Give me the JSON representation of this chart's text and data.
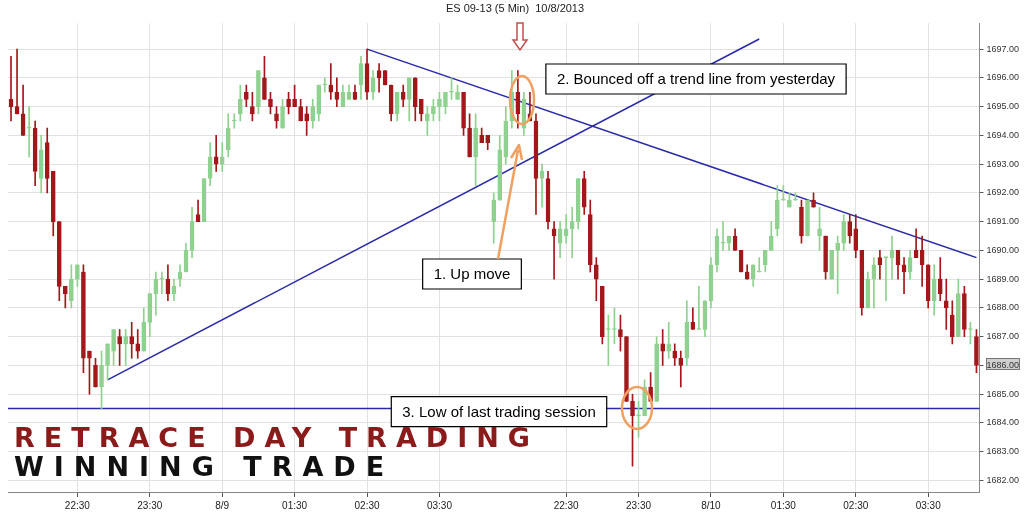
{
  "chart_data": {
    "type": "candlestick",
    "title": "ES 09-13 (5 Min)  10/8/2013",
    "categories": [
      null,
      null,
      null,
      null,
      null,
      null,
      null,
      null,
      null,
      null,
      null,
      "22:30",
      null,
      null,
      null,
      null,
      null,
      null,
      null,
      null,
      null,
      null,
      null,
      "23:30",
      null,
      null,
      null,
      null,
      null,
      null,
      null,
      null,
      null,
      null,
      null,
      "8/9",
      null,
      null,
      null,
      null,
      null,
      null,
      null,
      null,
      null,
      null,
      null,
      "01:30",
      null,
      null,
      null,
      null,
      null,
      null,
      null,
      null,
      null,
      null,
      null,
      "02:30",
      null,
      null,
      null,
      null,
      null,
      null,
      null,
      null,
      null,
      null,
      null,
      "03:30",
      null,
      null,
      null,
      null,
      null,
      null,
      null,
      null,
      null,
      null,
      null,
      null,
      null,
      null,
      null,
      null,
      null,
      null,
      null,
      null,
      "22:30",
      null,
      null,
      null,
      null,
      null,
      null,
      null,
      null,
      null,
      null,
      null,
      "23:30",
      null,
      null,
      null,
      null,
      null,
      null,
      null,
      null,
      null,
      null,
      null,
      "8/10",
      null,
      null,
      null,
      null,
      null,
      null,
      null,
      null,
      null,
      null,
      null,
      "01:30",
      null,
      null,
      null,
      null,
      null,
      null,
      null,
      null,
      null,
      null,
      null,
      "02:30",
      null,
      null,
      null,
      null,
      null,
      null,
      null,
      null,
      null,
      null,
      null,
      "03:30",
      null,
      null,
      null,
      null,
      null,
      null,
      null,
      null
    ],
    "colors": [
      "#a3171b",
      "#a3171b",
      "#a3171b",
      "#8fd18f",
      "#a3171b",
      "#8fd18f",
      "#a3171b",
      "#a3171b",
      "#a3171b",
      "#a3171b",
      "#8fd18f",
      "#8fd18f",
      "#a3171b",
      "#a3171b",
      "#a3171b",
      "#8fd18f",
      "#8fd18f",
      "#8fd18f",
      "#a3171b",
      "#8fd18f",
      "#a3171b",
      "#a3171b",
      "#8fd18f",
      "#8fd18f",
      "#8fd18f",
      "#8fd18f",
      "#a3171b",
      "#8fd18f",
      "#8fd18f",
      "#8fd18f",
      "#8fd18f",
      "#a3171b",
      "#8fd18f",
      "#8fd18f",
      "#a3171b",
      "#8fd18f",
      "#8fd18f",
      "#8fd18f",
      "#8fd18f",
      "#a3171b",
      "#a3171b",
      "#8fd18f",
      "#a3171b",
      "#a3171b",
      "#a3171b",
      "#8fd18f",
      "#a3171b",
      "#a3171b",
      "#a3171b",
      "#a3171b",
      "#8fd18f",
      "#8fd18f",
      "#8fd18f",
      "#a3171b",
      "#a3171b",
      "#8fd18f",
      "#8fd18f",
      "#a3171b",
      "#8fd18f",
      "#a3171b",
      "#8fd18f",
      "#a3171b",
      "#a3171b",
      "#a3171b",
      "#8fd18f",
      "#a3171b",
      "#8fd18f",
      "#a3171b",
      "#a3171b",
      "#8fd18f",
      "#8fd18f",
      "#8fd18f",
      "#8fd18f",
      "#8fd18f",
      "#8fd18f",
      "#a3171b",
      "#a3171b",
      "#8fd18f",
      "#a3171b",
      "#a3171b",
      "#8fd18f",
      "#8fd18f",
      "#8fd18f",
      "#8fd18f",
      "#a3171b",
      "#8fd18f",
      "#a3171b",
      "#a3171b",
      "#8fd18f",
      "#a3171b",
      "#a3171b",
      "#8fd18f",
      "#8fd18f",
      "#8fd18f",
      "#8fd18f",
      "#a3171b",
      "#a3171b",
      "#a3171b",
      "#a3171b",
      "#8fd18f",
      "#8fd18f",
      "#a3171b",
      "#a3171b",
      "#a3171b",
      "#8fd18f",
      "#8fd18f",
      "#a3171b",
      "#8fd18f",
      "#a3171b",
      "#8fd18f",
      "#a3171b",
      "#a3171b",
      "#8fd18f",
      "#a3171b",
      "#8fd18f",
      "#8fd18f",
      "#8fd18f",
      "#8fd18f",
      "#8fd18f",
      "#8fd18f",
      "#a3171b",
      "#a3171b",
      "#a3171b",
      "#8fd18f",
      "#8fd18f",
      "#8fd18f",
      "#8fd18f",
      "#8fd18f",
      "#8fd18f",
      "#8fd18f",
      "#8fd18f",
      "#a3171b",
      "#8fd18f",
      "#a3171b",
      "#8fd18f",
      "#a3171b",
      "#8fd18f",
      "#8fd18f",
      "#8fd18f",
      "#a3171b",
      "#a3171b",
      "#a3171b",
      "#8fd18f",
      "#8fd18f",
      "#a3171b",
      "#8fd18f",
      "#8fd18f",
      "#a3171b",
      "#a3171b",
      "#8fd18f",
      "#a3171b",
      "#a3171b",
      "#a3171b",
      "#8fd18f",
      "#a3171b",
      "#a3171b",
      "#a3171b",
      "#8fd18f",
      "#a3171b",
      "#8fd18f",
      "#a3171b"
    ],
    "ohlc": [
      [
        1695.25,
        1696.75,
        1694.5,
        1695
      ],
      [
        1695,
        1697,
        1694.75,
        1694.75
      ],
      [
        1694.75,
        1695.75,
        1694,
        1694
      ],
      [
        1694.25,
        1695,
        1693.25,
        1694.25
      ],
      [
        1694.25,
        1694.5,
        1692.25,
        1692.75
      ],
      [
        1692.5,
        1694,
        1692,
        1693.5
      ],
      [
        1693.75,
        1694.25,
        1692,
        1692.5
      ],
      [
        1692.75,
        1692.75,
        1690.5,
        1691
      ],
      [
        1691,
        1691,
        1688.25,
        1688.75
      ],
      [
        1688.75,
        1688.75,
        1688,
        1688.5
      ],
      [
        1688.25,
        1689.5,
        1688,
        1689
      ],
      [
        1689,
        1689.5,
        1688.75,
        1689.5
      ],
      [
        1689.25,
        1689.5,
        1685.75,
        1686.25
      ],
      [
        1686.5,
        1686.5,
        1685,
        1686.25
      ],
      [
        1686,
        1686.25,
        1685.25,
        1685.25
      ],
      [
        1685.25,
        1686.5,
        1684.5,
        1686
      ],
      [
        1686,
        1686.75,
        1685.5,
        1686.75
      ],
      [
        1686.5,
        1687.25,
        1686,
        1687.25
      ],
      [
        1687,
        1687.25,
        1686,
        1686.75
      ],
      [
        1686.75,
        1687.25,
        1686,
        1687
      ],
      [
        1687,
        1687.5,
        1686.25,
        1686.75
      ],
      [
        1686.75,
        1687.25,
        1686.25,
        1686.5
      ],
      [
        1686.5,
        1688,
        1686.5,
        1687.5
      ],
      [
        1687.5,
        1688.5,
        1687,
        1688.5
      ],
      [
        1688.5,
        1689.25,
        1687.75,
        1689
      ],
      [
        1689,
        1689.25,
        1688.5,
        1689
      ],
      [
        1689,
        1689.5,
        1688.25,
        1688.5
      ],
      [
        1688.5,
        1689,
        1688.25,
        1688.75
      ],
      [
        1689,
        1689.5,
        1688.75,
        1689.25
      ],
      [
        1689.25,
        1690.25,
        1689.25,
        1690
      ],
      [
        1690,
        1691.5,
        1689.75,
        1691
      ],
      [
        1691.25,
        1691.75,
        1691,
        1691
      ],
      [
        1691,
        1692.5,
        1691,
        1692.5
      ],
      [
        1692.5,
        1693.75,
        1692.25,
        1693.25
      ],
      [
        1693.25,
        1694,
        1692.75,
        1693
      ],
      [
        1693,
        1693.75,
        1692.75,
        1693.25
      ],
      [
        1693.5,
        1694.75,
        1693.25,
        1694.25
      ],
      [
        1694.5,
        1694.75,
        1694.25,
        1694.5
      ],
      [
        1694.75,
        1695.75,
        1694.5,
        1695.25
      ],
      [
        1695.5,
        1695.75,
        1695,
        1695.25
      ],
      [
        1695,
        1695.5,
        1694.5,
        1694.75
      ],
      [
        1695,
        1696.25,
        1694.75,
        1696.25
      ],
      [
        1696,
        1696.75,
        1695.25,
        1695.25
      ],
      [
        1695.25,
        1695.5,
        1694.75,
        1695
      ],
      [
        1694.75,
        1695,
        1694.25,
        1694.5
      ],
      [
        1694.25,
        1695.25,
        1694.25,
        1695
      ],
      [
        1695.25,
        1695.5,
        1694.75,
        1695
      ],
      [
        1695.25,
        1695.75,
        1695,
        1695
      ],
      [
        1695,
        1695.25,
        1694.5,
        1694.5
      ],
      [
        1694.75,
        1695,
        1694,
        1694.5
      ],
      [
        1694.5,
        1695.25,
        1694.25,
        1695
      ],
      [
        1694.75,
        1695.75,
        1694.5,
        1695.75
      ],
      [
        1695.75,
        1696,
        1695.5,
        1695.75
      ],
      [
        1695.75,
        1696.5,
        1695.25,
        1695.5
      ],
      [
        1695.5,
        1696,
        1695,
        1695.25
      ],
      [
        1695,
        1695.75,
        1695,
        1695.5
      ],
      [
        1695.25,
        1695.75,
        1695.25,
        1695.5
      ],
      [
        1695.5,
        1695.75,
        1695.25,
        1695.25
      ],
      [
        1695.75,
        1696.75,
        1695.25,
        1696.5
      ],
      [
        1696.5,
        1697,
        1695.25,
        1695.5
      ],
      [
        1695.5,
        1696.25,
        1695.25,
        1696
      ],
      [
        1696.25,
        1696.5,
        1695.5,
        1696
      ],
      [
        1696.25,
        1696.25,
        1695.75,
        1695.75
      ],
      [
        1695.75,
        1695.75,
        1694.5,
        1694.75
      ],
      [
        1694.75,
        1695.5,
        1694.5,
        1695.5
      ],
      [
        1695.5,
        1695.75,
        1695,
        1695.25
      ],
      [
        1695.25,
        1696,
        1694.5,
        1696
      ],
      [
        1696,
        1696,
        1694.5,
        1695
      ],
      [
        1695.25,
        1695.25,
        1694.5,
        1694.75
      ],
      [
        1694.5,
        1695,
        1694,
        1694.75
      ],
      [
        1694.75,
        1695.25,
        1694.5,
        1695
      ],
      [
        1695,
        1695.5,
        1694.5,
        1695.25
      ],
      [
        1695,
        1695.5,
        1694.75,
        1695.5
      ],
      [
        1695.5,
        1696,
        1695.25,
        1695.5
      ],
      [
        1695.25,
        1695.75,
        1695.25,
        1695.5
      ],
      [
        1695.5,
        1695.5,
        1694,
        1694.25
      ],
      [
        1694.25,
        1694.75,
        1693.25,
        1693.25
      ],
      [
        1693.25,
        1694.75,
        1692.25,
        1694.25
      ],
      [
        1694,
        1694.25,
        1693.75,
        1693.75
      ],
      [
        1694,
        1694,
        1693.5,
        1693.75
      ],
      [
        1691,
        1692,
        1690.25,
        1691.75
      ],
      [
        1691.75,
        1694,
        1691.75,
        1693.5
      ],
      [
        1693.25,
        1695,
        1693,
        1694.5
      ],
      [
        1694.5,
        1696.25,
        1694.25,
        1695.5
      ],
      [
        1695.5,
        1696.25,
        1694.25,
        1694.75
      ],
      [
        1694.25,
        1695.5,
        1694,
        1695.25
      ],
      [
        1694.75,
        1695.5,
        1694.5,
        1694.5
      ],
      [
        1694.5,
        1694.75,
        1691.25,
        1692.5
      ],
      [
        1692.5,
        1693,
        1691.5,
        1692.75
      ],
      [
        1692.5,
        1692.75,
        1690.75,
        1691
      ],
      [
        1690.75,
        1691,
        1689,
        1690.5
      ],
      [
        1690.25,
        1691,
        1689.75,
        1690.75
      ],
      [
        1690.5,
        1691.25,
        1690.25,
        1690.75
      ],
      [
        1690.75,
        1691.5,
        1689.75,
        1691
      ],
      [
        1691,
        1692.5,
        1690.75,
        1692.5
      ],
      [
        1692.5,
        1692.75,
        1691.25,
        1691.5
      ],
      [
        1691.25,
        1691.75,
        1689.25,
        1689.5
      ],
      [
        1689.5,
        1689.75,
        1688.25,
        1689
      ],
      [
        1688.75,
        1688.75,
        1686.75,
        1687
      ],
      [
        1687.25,
        1687.75,
        1686,
        1687.25
      ],
      [
        1687.25,
        1688,
        1686.75,
        1687.25
      ],
      [
        1687.25,
        1687.75,
        1686.5,
        1687
      ],
      [
        1687,
        1687,
        1684.75,
        1684.75
      ],
      [
        1684.75,
        1685,
        1682.5,
        1684.25
      ],
      [
        1684.25,
        1684.75,
        1683.5,
        1684.25
      ],
      [
        1684.25,
        1685.5,
        1684.25,
        1685.25
      ],
      [
        1685.25,
        1685.75,
        1684.75,
        1684.75
      ],
      [
        1684.75,
        1687,
        1684.75,
        1686.75
      ],
      [
        1686.75,
        1687.25,
        1686,
        1686.5
      ],
      [
        1686.5,
        1687.5,
        1686.25,
        1686.75
      ],
      [
        1686.5,
        1686.75,
        1686,
        1686.25
      ],
      [
        1686.25,
        1686.5,
        1685.25,
        1686
      ],
      [
        1686.25,
        1688.25,
        1686,
        1687.5
      ],
      [
        1687.5,
        1688,
        1687.25,
        1687.25
      ],
      [
        1687.25,
        1688.75,
        1687.25,
        1687.25
      ],
      [
        1687.25,
        1688.25,
        1687,
        1688.25
      ],
      [
        1688.25,
        1689.75,
        1688,
        1689.5
      ],
      [
        1689.5,
        1690.75,
        1689.25,
        1690.5
      ],
      [
        1690.25,
        1691,
        1690,
        1690.25
      ],
      [
        1690.25,
        1690.5,
        1690,
        1690.5
      ],
      [
        1690.5,
        1690.75,
        1690,
        1690
      ],
      [
        1690,
        1690,
        1689.25,
        1689.25
      ],
      [
        1689.25,
        1689.5,
        1689,
        1689
      ],
      [
        1689,
        1689.5,
        1688.75,
        1689.5
      ],
      [
        1689.25,
        1689.75,
        1689.25,
        1689.25
      ],
      [
        1689.5,
        1690,
        1689.25,
        1690
      ],
      [
        1690,
        1691,
        1690,
        1690.5
      ],
      [
        1690.75,
        1692.25,
        1690.5,
        1691.75
      ],
      [
        1691.75,
        1692.25,
        1691.75,
        1691.75
      ],
      [
        1691.5,
        1692,
        1691.5,
        1691.75
      ],
      [
        1691.75,
        1692,
        1691.75,
        1691.75
      ],
      [
        1691.5,
        1691.75,
        1690.25,
        1690.5
      ],
      [
        1690.5,
        1691.75,
        1690.5,
        1691.75
      ],
      [
        1691.75,
        1692,
        1691.5,
        1691.5
      ],
      [
        1690.5,
        1691.5,
        1690,
        1690.75
      ],
      [
        1690.5,
        1690.5,
        1689,
        1689.25
      ],
      [
        1689,
        1690,
        1689,
        1690
      ],
      [
        1690,
        1690.5,
        1688.5,
        1690.25
      ],
      [
        1690.25,
        1691.25,
        1690,
        1691
      ],
      [
        1691,
        1691.25,
        1690.25,
        1690.5
      ],
      [
        1690.75,
        1691.25,
        1689.75,
        1690
      ],
      [
        1690,
        1690,
        1687.75,
        1688
      ],
      [
        1688,
        1689.25,
        1688,
        1689
      ],
      [
        1689,
        1689.75,
        1688,
        1689.5
      ],
      [
        1689.75,
        1690,
        1689,
        1689.5
      ],
      [
        1689.75,
        1689.75,
        1688.25,
        1689.75
      ],
      [
        1689.75,
        1690.5,
        1689,
        1690
      ],
      [
        1690,
        1690,
        1689,
        1689.5
      ],
      [
        1689.5,
        1689.75,
        1688.5,
        1689.25
      ],
      [
        1689.25,
        1690,
        1689,
        1689.75
      ],
      [
        1690,
        1690.75,
        1689.75,
        1689.75
      ],
      [
        1690,
        1690.5,
        1688.75,
        1689.5
      ],
      [
        1689.5,
        1689.5,
        1688,
        1688.25
      ],
      [
        1688.25,
        1689.5,
        1687.75,
        1689
      ],
      [
        1689,
        1689.75,
        1688.25,
        1688.5
      ],
      [
        1688.25,
        1689,
        1687.25,
        1688
      ],
      [
        1687.75,
        1688.25,
        1686.75,
        1687
      ],
      [
        1687,
        1689,
        1687,
        1688.5
      ],
      [
        1688.5,
        1688.75,
        1687,
        1687.25
      ],
      [
        1687.25,
        1687.5,
        1686.75,
        1687.25
      ],
      [
        1687,
        1687.25,
        1685.75,
        1686
      ]
    ],
    "series": [
      {
        "type": "line",
        "color": "#2a2aa8",
        "values": [
          null,
          null,
          null,
          null,
          null,
          null,
          null,
          null,
          null,
          null,
          null,
          null,
          null,
          null,
          null,
          null,
          1685.5,
          null,
          null,
          null,
          null,
          null,
          null,
          null,
          null,
          null,
          null,
          null,
          null,
          null,
          null,
          null,
          null,
          null,
          null,
          null,
          null,
          null,
          null,
          null,
          null,
          null,
          null,
          null,
          null,
          null,
          null,
          null,
          null,
          null,
          null,
          null,
          null,
          null,
          null,
          null,
          null,
          null,
          null,
          null,
          null,
          null,
          null,
          null,
          null,
          null,
          null,
          null,
          null,
          null,
          null,
          null,
          null,
          null,
          null,
          null,
          null,
          null,
          null,
          null,
          null,
          null,
          null,
          null,
          null,
          null,
          null,
          null,
          null,
          null,
          null,
          null,
          null,
          null,
          null,
          null,
          null,
          null,
          null,
          null,
          null,
          null,
          null,
          null,
          null,
          null,
          null,
          null,
          null,
          null,
          null,
          null,
          null,
          null,
          null,
          null,
          null,
          null,
          null,
          null,
          null,
          null,
          null,
          null,
          1697.35,
          null,
          null,
          null,
          null,
          null,
          null,
          null,
          null,
          null,
          null,
          null,
          null,
          null,
          null,
          null,
          null,
          null,
          null,
          null,
          null,
          null,
          null,
          null,
          null,
          null,
          null,
          null,
          null,
          null,
          null,
          null,
          null,
          null,
          null,
          null,
          null
        ]
      },
      {
        "type": "line",
        "color": "#2a2aa8",
        "values": [
          null,
          null,
          null,
          null,
          null,
          null,
          null,
          null,
          null,
          null,
          null,
          null,
          null,
          null,
          null,
          null,
          null,
          null,
          null,
          null,
          null,
          null,
          null,
          null,
          null,
          null,
          null,
          null,
          null,
          null,
          null,
          null,
          null,
          null,
          null,
          null,
          null,
          null,
          null,
          null,
          null,
          null,
          null,
          null,
          null,
          null,
          null,
          null,
          null,
          null,
          null,
          null,
          null,
          null,
          null,
          null,
          null,
          null,
          null,
          1697,
          null,
          null,
          null,
          null,
          null,
          null,
          null,
          null,
          null,
          null,
          null,
          null,
          null,
          null,
          null,
          null,
          null,
          null,
          null,
          null,
          null,
          null,
          null,
          null,
          null,
          null,
          null,
          null,
          null,
          null,
          null,
          null,
          null,
          null,
          null,
          null,
          null,
          null,
          null,
          null,
          null,
          null,
          null,
          null,
          null,
          null,
          null,
          null,
          null,
          null,
          null,
          null,
          null,
          null,
          null,
          null,
          null,
          null,
          null,
          null,
          null,
          null,
          null,
          null,
          null,
          null,
          null,
          null,
          null,
          null,
          null,
          null,
          null,
          null,
          null,
          null,
          null,
          null,
          null,
          null,
          null,
          null,
          null,
          null,
          null,
          null,
          null,
          null,
          null,
          null,
          null,
          null,
          null,
          null,
          null,
          null,
          null,
          null,
          null,
          null,
          1689.75
        ]
      }
    ],
    "ylim": [
      1681.6,
      1697.9
    ],
    "yticks": [
      {
        "value": 1682,
        "label": "1682.00"
      },
      {
        "value": 1683,
        "label": "1683.00"
      },
      {
        "value": 1684,
        "label": "1684.00"
      },
      {
        "value": 1685,
        "label": "1685.00"
      },
      {
        "value": 1686,
        "label": "1686.00"
      },
      {
        "value": 1687,
        "label": "1687.00"
      },
      {
        "value": 1688,
        "label": "1688.00"
      },
      {
        "value": 1689,
        "label": "1689.00"
      },
      {
        "value": 1690,
        "label": "1690.00"
      },
      {
        "value": 1691,
        "label": "1691.00"
      },
      {
        "value": 1692,
        "label": "1692.00"
      },
      {
        "value": 1693,
        "label": "1693.00"
      },
      {
        "value": 1694,
        "label": "1694.00"
      },
      {
        "value": 1695,
        "label": "1695.00"
      },
      {
        "value": 1696,
        "label": "1696.00"
      },
      {
        "value": 1697,
        "label": "1697.00"
      }
    ],
    "ref_lines": [
      {
        "axis": "y",
        "value": 1684.5,
        "label": "3. Low of last trading session",
        "color": "#2a2aa8"
      }
    ],
    "annotations": [
      "2. Bounced off a trend line from yesterday",
      "1. Up move",
      "RETRACE DAY TRADING",
      "WINNING TRADE"
    ],
    "grid": true
  }
}
